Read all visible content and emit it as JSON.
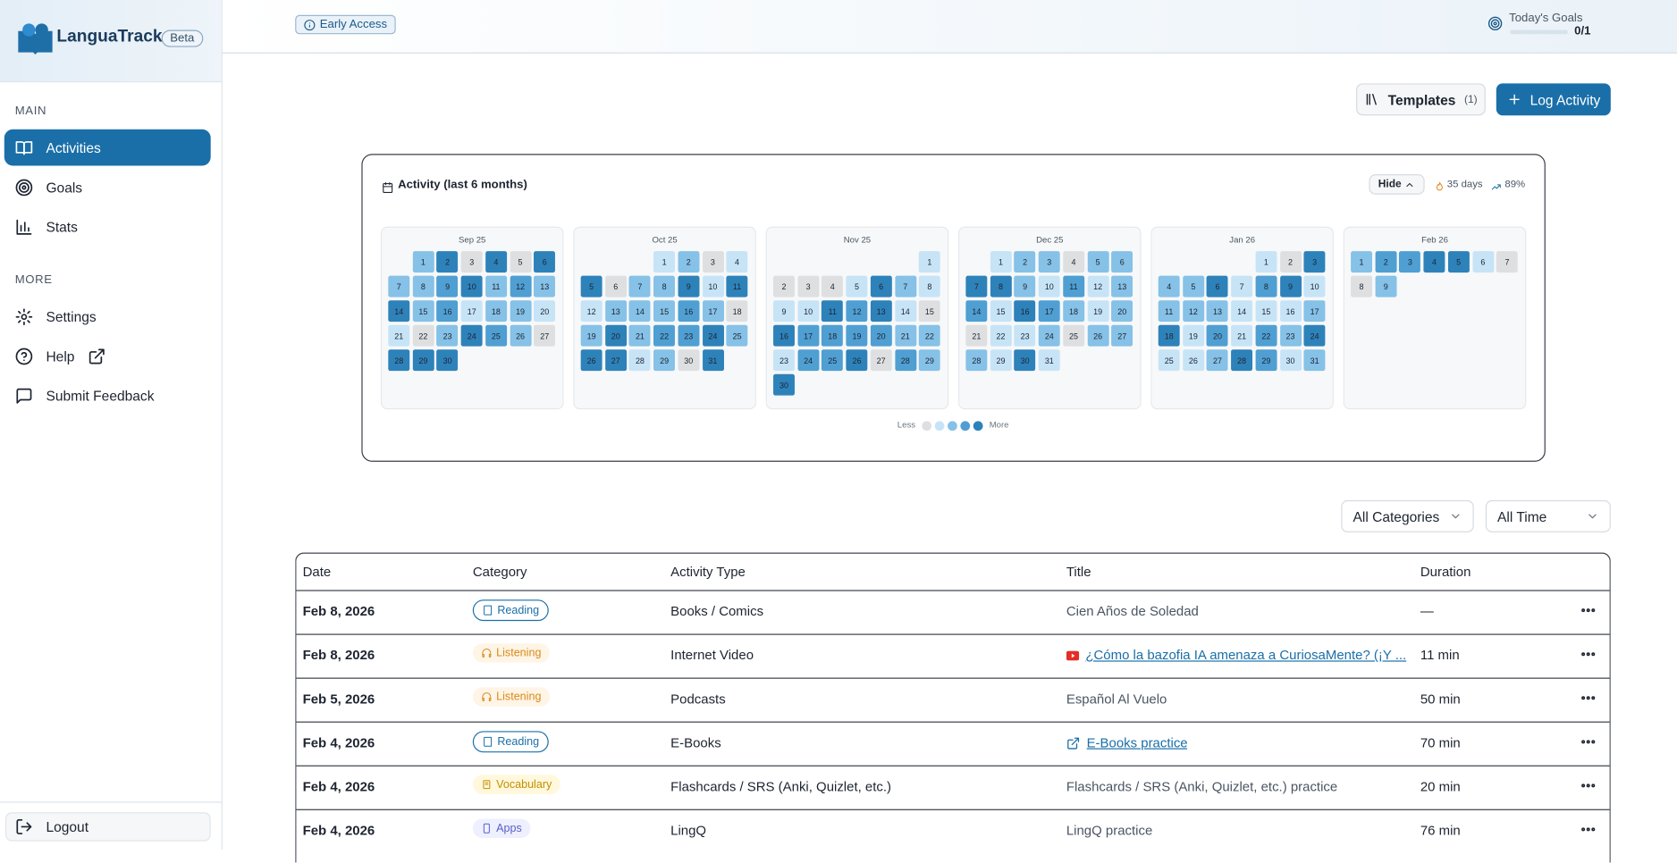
{
  "sidebar": {
    "brand": "LanguaTracker",
    "badge": "Beta",
    "sections": [
      {
        "heading": "MAIN",
        "items": [
          "Activities",
          "Goals",
          "Stats"
        ]
      },
      {
        "heading": "MORE",
        "items": [
          "Settings",
          "Help",
          "Submit Feedback"
        ]
      }
    ],
    "logout": "Logout"
  },
  "topbar": {
    "early_access": "Early Access",
    "goals_label": "Today's Goals",
    "goals_value": "0/1"
  },
  "toolbar": {
    "templates": "Templates",
    "templates_count": "(1)",
    "log_activity": "Log Activity"
  },
  "heatmap": {
    "title": "Activity (last 6 months)",
    "hide": "Hide",
    "streak": "35 days",
    "rate": "89%",
    "level_colors": [
      "#dedfe1",
      "#c7e4f7",
      "#86c1e7",
      "#4f9fd3",
      "#2e82ba"
    ],
    "months": [
      {
        "label": "Sep 25",
        "days": [
          1,
          2,
          3,
          4,
          5,
          6,
          7,
          8,
          9,
          10,
          11,
          12,
          13,
          14,
          15,
          16,
          17,
          18,
          19,
          20,
          21,
          22,
          23,
          24,
          25,
          26,
          27,
          28,
          29,
          30
        ],
        "levels": [
          2,
          4,
          0,
          4,
          0,
          4,
          2,
          2,
          3,
          4,
          2,
          3,
          2,
          4,
          2,
          3,
          1,
          2,
          2,
          1,
          1,
          0,
          2,
          4,
          3,
          2,
          0,
          4,
          4,
          4
        ]
      },
      {
        "label": "Oct 25",
        "days": [
          1,
          2,
          3,
          4,
          5,
          6,
          7,
          8,
          9,
          10,
          11,
          12,
          13,
          14,
          15,
          16,
          17,
          18,
          19,
          20,
          21,
          22,
          23,
          24,
          25,
          26,
          27,
          28,
          29,
          30,
          31
        ],
        "levels": [
          1,
          2,
          0,
          1,
          4,
          0,
          2,
          2,
          4,
          1,
          4,
          1,
          2,
          2,
          2,
          3,
          2,
          0,
          2,
          4,
          2,
          3,
          3,
          4,
          2,
          4,
          4,
          1,
          2,
          0,
          4
        ]
      },
      {
        "label": "Nov 25",
        "days": [
          1,
          2,
          3,
          4,
          5,
          6,
          7,
          8,
          9,
          10,
          11,
          12,
          13,
          14,
          15,
          16,
          17,
          18,
          19,
          20,
          21,
          22,
          23,
          24,
          25,
          26,
          27,
          28,
          29,
          30
        ],
        "levels": [
          1,
          0,
          0,
          0,
          1,
          4,
          2,
          1,
          1,
          1,
          4,
          3,
          4,
          1,
          0,
          4,
          3,
          3,
          3,
          3,
          2,
          2,
          1,
          3,
          3,
          4,
          0,
          3,
          2,
          4
        ]
      },
      {
        "label": "Dec 25",
        "days": [
          1,
          2,
          3,
          4,
          5,
          6,
          7,
          8,
          9,
          10,
          11,
          12,
          13,
          14,
          15,
          16,
          17,
          18,
          19,
          20,
          21,
          22,
          23,
          24,
          25,
          26,
          27,
          28,
          29,
          30,
          31
        ],
        "levels": [
          1,
          2,
          2,
          0,
          2,
          2,
          4,
          4,
          2,
          1,
          3,
          1,
          2,
          3,
          1,
          4,
          3,
          2,
          1,
          2,
          0,
          1,
          1,
          2,
          0,
          2,
          2,
          2,
          1,
          4,
          1
        ]
      },
      {
        "label": "Jan 26",
        "days": [
          1,
          2,
          3,
          4,
          5,
          6,
          7,
          8,
          9,
          10,
          11,
          12,
          13,
          14,
          15,
          16,
          17,
          18,
          19,
          20,
          21,
          22,
          23,
          24,
          25,
          26,
          27,
          28,
          29,
          30,
          31
        ],
        "levels": [
          1,
          0,
          4,
          2,
          2,
          4,
          1,
          3,
          4,
          1,
          2,
          2,
          2,
          1,
          1,
          1,
          2,
          4,
          1,
          3,
          1,
          3,
          2,
          4,
          1,
          1,
          2,
          4,
          3,
          1,
          2
        ]
      },
      {
        "label": "Feb 26",
        "days": [
          1,
          2,
          3,
          4,
          5,
          6,
          7,
          8,
          9
        ],
        "levels": [
          2,
          3,
          3,
          4,
          4,
          1,
          0,
          0,
          2
        ]
      }
    ],
    "legend_less": "Less",
    "legend_more": "More"
  },
  "filters": [
    "All Categories",
    "All Time"
  ],
  "table": {
    "columns": [
      "Date",
      "Category",
      "Activity Type",
      "Title",
      "Duration"
    ],
    "rows": [
      {
        "date": "Feb 8, 2026",
        "category": "Reading",
        "type": "Books / Comics",
        "title": "Cien Años de Soledad",
        "duration": "—"
      },
      {
        "date": "Feb 8, 2026",
        "category": "Listening",
        "type": "Internet Video",
        "title": "¿Cómo la bazofia IA amenaza a CuriosaMente? (¡Y ...",
        "duration": "11 min",
        "title_icon": "youtube"
      },
      {
        "date": "Feb 5, 2026",
        "category": "Listening",
        "type": "Podcasts",
        "title": "Español Al Vuelo",
        "duration": "50 min"
      },
      {
        "date": "Feb 4, 2026",
        "category": "Reading",
        "type": "E-Books",
        "title": "E-Books practice",
        "duration": "70 min",
        "title_icon": "external"
      },
      {
        "date": "Feb 4, 2026",
        "category": "Vocabulary",
        "type": "Flashcards / SRS (Anki, Quizlet, etc.)",
        "title": "Flashcards / SRS (Anki, Quizlet, etc.) practice",
        "duration": "20 min"
      },
      {
        "date": "Feb 4, 2026",
        "category": "Apps",
        "type": "LingQ",
        "title": "LingQ practice",
        "duration": "76 min"
      }
    ]
  }
}
